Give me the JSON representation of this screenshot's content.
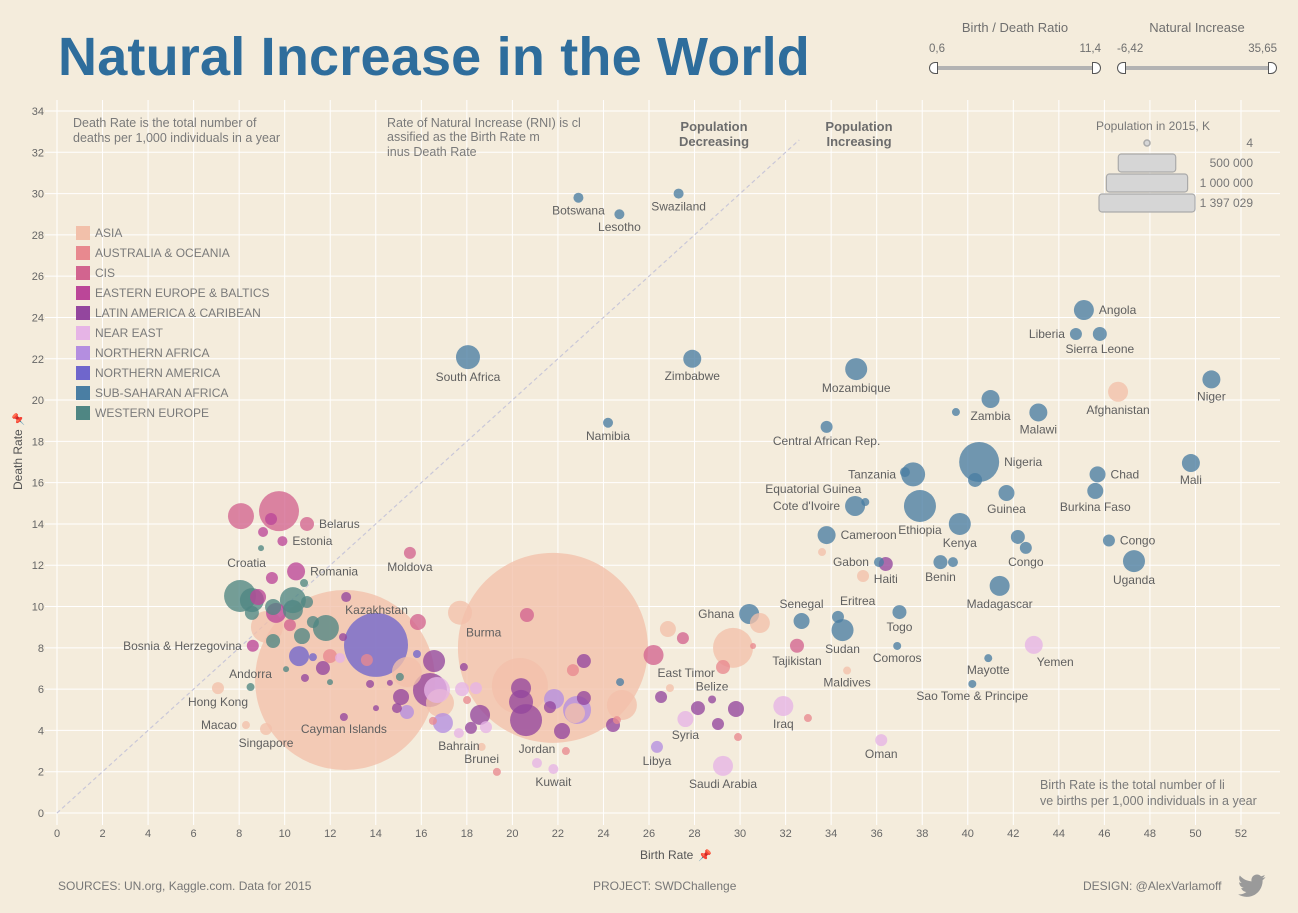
{
  "title": "Natural Increase in the World",
  "filters": [
    {
      "label": "Birth / Death Ratio",
      "min": "0,6",
      "max": "11,4"
    },
    {
      "label": "Natural Increase",
      "min": "-6,42",
      "max": "35,65"
    }
  ],
  "footer": {
    "sources": "SOURCES: UN.org, Kaggle.com. Data for 2015",
    "project": "PROJECT: SWDChallenge",
    "design": "DESIGN: @AlexVarlamoff",
    "icon": "twitter-icon"
  },
  "chart_data": {
    "type": "scatter",
    "xlabel": "Birth Rate",
    "ylabel": "Death Rate",
    "xlim": [
      0,
      52
    ],
    "ylim": [
      0,
      34
    ],
    "xticks": [
      0,
      2,
      4,
      6,
      8,
      10,
      12,
      14,
      16,
      18,
      20,
      22,
      24,
      26,
      28,
      30,
      32,
      34,
      36,
      38,
      40,
      42,
      44,
      46,
      48,
      50,
      52
    ],
    "yticks": [
      0,
      2,
      4,
      6,
      8,
      10,
      12,
      14,
      16,
      18,
      20,
      22,
      24,
      26,
      28,
      30,
      32,
      34
    ],
    "grid": true,
    "reference_line": "birth rate = death rate",
    "annotations": {
      "death_rate_note": "Death Rate is the total number of deaths per 1,000 individuals in a year",
      "rni_note": "Rate of Natural Increase (RNI)  is classified as the Birth Rate minus Death Rate",
      "decreasing": "Population Decreasing",
      "increasing": "Population Increasing",
      "birth_rate_note": "Birth Rate is the total number of live births per 1,000 individuals in a year"
    },
    "size_legend": {
      "title": "Population in 2015, K",
      "entries": [
        {
          "label": "4",
          "value": 4
        },
        {
          "label": "500 000",
          "value": 500000
        },
        {
          "label": "1 000 000",
          "value": 1000000
        },
        {
          "label": "1 397 029",
          "value": 1397029
        }
      ]
    },
    "legend_position": "left",
    "regions": [
      {
        "name": "ASIA",
        "color": "#f2c0aa"
      },
      {
        "name": "AUSTRALIA & OCEANIA",
        "color": "#e8898f"
      },
      {
        "name": "CIS",
        "color": "#d2648f"
      },
      {
        "name": "EASTERN EUROPE & BALTICS",
        "color": "#bb4698"
      },
      {
        "name": "LATIN AMERICA & CARIBEAN",
        "color": "#93469e"
      },
      {
        "name": "NEAR EAST",
        "color": "#e6b4e6"
      },
      {
        "name": "NORTHERN AFRICA",
        "color": "#b48ee0"
      },
      {
        "name": "NORTHERN AMERICA",
        "color": "#6f66cc"
      },
      {
        "name": "SUB-SAHARAN AFRICA",
        "color": "#4a7ea3"
      },
      {
        "name": "WESTERN EUROPE",
        "color": "#4f8683"
      }
    ],
    "point_fields": [
      "country",
      "birth_rate",
      "death_rate",
      "region_index",
      "population_k",
      "label_side"
    ],
    "points": [
      [
        "Botswana",
        22.9,
        29.8,
        8,
        3870,
        "below"
      ],
      [
        "Swaziland",
        27.3,
        30.0,
        8,
        3870,
        "below"
      ],
      [
        "Lesotho",
        24.7,
        29.0,
        8,
        3870,
        "below"
      ],
      [
        "South Africa",
        18.05,
        22.08,
        8,
        22290,
        "below"
      ],
      [
        "Zimbabwe",
        27.9,
        22.0,
        8,
        12540,
        "below"
      ],
      [
        "Namibia",
        24.2,
        18.9,
        8,
        3870,
        "below"
      ],
      [
        "Mozambique",
        35.1,
        21.5,
        8,
        18730,
        "below"
      ],
      [
        "Central African Rep.",
        33.8,
        18.7,
        8,
        5570,
        "below"
      ],
      [
        "Angola",
        45.1,
        24.36,
        8,
        15480,
        "right"
      ],
      [
        "Liberia",
        44.75,
        23.2,
        8,
        5570,
        "left"
      ],
      [
        "Sierra Leone",
        45.8,
        23.2,
        8,
        7580,
        "below"
      ],
      [
        "Afghanistan",
        46.6,
        20.4,
        0,
        15480,
        "below"
      ],
      [
        "Niger",
        50.7,
        21.0,
        8,
        12540,
        "below"
      ],
      [
        "Zambia",
        41.0,
        20.05,
        8,
        12540,
        "below"
      ],
      [
        "Malawi",
        43.1,
        19.4,
        8,
        12540,
        "below"
      ],
      [
        "Nigeria",
        40.5,
        17.0,
        8,
        61910,
        "right"
      ],
      [
        "Tanzania",
        37.6,
        16.4,
        8,
        22290,
        "left"
      ],
      [
        "Chad",
        45.7,
        16.4,
        8,
        9910,
        "right"
      ],
      [
        "Mali",
        49.8,
        16.95,
        8,
        12540,
        "below"
      ],
      [
        "Equatorial Guinea",
        35.5,
        15.06,
        8,
        2480,
        "above-left"
      ],
      [
        "Cote d'Ivoire",
        35.05,
        14.87,
        8,
        15480,
        "left"
      ],
      [
        "Ethiopia",
        37.9,
        14.87,
        8,
        39630,
        "below"
      ],
      [
        "Guinea",
        41.7,
        15.5,
        8,
        9910,
        "below"
      ],
      [
        "Burkina Faso",
        45.6,
        15.6,
        8,
        9910,
        "below"
      ],
      [
        "Kenya",
        39.65,
        14.0,
        8,
        18730,
        "below"
      ],
      [
        "Cameroon",
        33.8,
        13.46,
        8,
        12540,
        "right"
      ],
      [
        "Congo",
        46.2,
        13.2,
        8,
        5570,
        "right"
      ],
      [
        "Congo",
        42.55,
        12.84,
        8,
        5570,
        "below"
      ],
      [
        "Gabon",
        36.1,
        12.15,
        8,
        3870,
        "left"
      ],
      [
        "Haiti",
        36.4,
        12.06,
        4,
        7580,
        "below"
      ],
      [
        "Benin",
        38.8,
        12.15,
        8,
        7580,
        "below"
      ],
      [
        "Madagascar",
        41.4,
        11.0,
        8,
        15480,
        "below"
      ],
      [
        "Uganda",
        47.3,
        12.2,
        8,
        18730,
        "below"
      ],
      [
        "Ghana",
        30.4,
        9.64,
        8,
        15480,
        "left"
      ],
      [
        "Senegal",
        32.7,
        9.3,
        8,
        9910,
        "above"
      ],
      [
        "Eritrea",
        34.3,
        9.5,
        8,
        5570,
        "above-right"
      ],
      [
        "Togo",
        37.0,
        9.73,
        8,
        7580,
        "below"
      ],
      [
        "Sudan",
        34.5,
        8.86,
        8,
        18730,
        "below"
      ],
      [
        "Comoros",
        36.9,
        8.09,
        8,
        2480,
        "below"
      ],
      [
        "Mayotte",
        40.9,
        7.5,
        8,
        2480,
        "below"
      ],
      [
        "Sao Tome & Principe",
        40.2,
        6.25,
        8,
        2480,
        "below"
      ],
      [
        "Yemen",
        42.9,
        8.14,
        5,
        12540,
        "below-right"
      ],
      [
        "Tajikistan",
        32.5,
        8.1,
        2,
        7580,
        "below"
      ],
      [
        "Maldives",
        34.7,
        6.9,
        0,
        2480,
        "below"
      ],
      [
        "Belize",
        28.77,
        5.5,
        4,
        2480,
        "above"
      ],
      [
        "East Timor",
        26.2,
        7.65,
        2,
        15480,
        "below-right"
      ],
      [
        "Iraq",
        31.9,
        5.18,
        5,
        15480,
        "below"
      ],
      [
        "Syria",
        27.6,
        4.55,
        5,
        9910,
        "below"
      ],
      [
        "Libya",
        26.35,
        3.2,
        6,
        5570,
        "below"
      ],
      [
        "Saudi Arabia",
        29.25,
        2.28,
        5,
        15480,
        "below"
      ],
      [
        "Oman",
        36.2,
        3.53,
        5,
        5570,
        "below"
      ],
      [
        "Kuwait",
        21.8,
        2.13,
        5,
        3870,
        "below"
      ],
      [
        "Jordan",
        21.08,
        2.42,
        5,
        3870,
        "above"
      ],
      [
        "Brunei",
        18.65,
        3.2,
        0,
        2480,
        "below"
      ],
      [
        "Bahrain",
        17.65,
        3.87,
        5,
        3870,
        "below"
      ],
      [
        "Burma",
        17.7,
        9.7,
        0,
        22290,
        "below-right"
      ],
      [
        "Moldova",
        15.5,
        12.6,
        2,
        5570,
        "below"
      ],
      [
        "Kazakhstan",
        12.7,
        10.46,
        4,
        3870,
        "below-right"
      ],
      [
        "Belarus",
        10.98,
        14.0,
        2,
        7580,
        "right"
      ],
      [
        "Estonia",
        9.9,
        13.17,
        3,
        3870,
        "right"
      ],
      [
        "Croatia",
        9.44,
        11.38,
        3,
        5570,
        "above-left"
      ],
      [
        "Romania",
        10.5,
        11.7,
        3,
        12540,
        "right"
      ],
      [
        "Bosnia & Herzegovina",
        8.6,
        8.1,
        3,
        5570,
        "left"
      ],
      [
        "Andorra",
        8.5,
        6.1,
        9,
        2480,
        "above"
      ],
      [
        "Hong Kong",
        7.07,
        6.05,
        0,
        5570,
        "below"
      ],
      [
        "Macao",
        8.3,
        4.26,
        0,
        2480,
        "left"
      ],
      [
        "Singapore",
        9.18,
        4.07,
        0,
        5570,
        "below"
      ],
      [
        "Cayman Islands",
        12.6,
        4.65,
        4,
        2480,
        "below"
      ],
      [
        "",
        12.65,
        6.44,
        0,
        1253850,
        ""
      ],
      [
        "",
        21.78,
        8.0,
        0,
        1397029,
        ""
      ],
      [
        "",
        14.01,
        8.14,
        7,
        158520,
        ""
      ],
      [
        "",
        20.33,
        6.15,
        0,
        121370,
        ""
      ],
      [
        "",
        29.69,
        8.0,
        0,
        61910,
        ""
      ],
      [
        "",
        24.81,
        5.23,
        0,
        34830,
        ""
      ],
      [
        "",
        30.87,
        9.2,
        0,
        15480,
        ""
      ],
      [
        "",
        9.75,
        14.62,
        2,
        61910,
        ""
      ],
      [
        "",
        8.08,
        14.38,
        2,
        26160,
        ""
      ],
      [
        "",
        8.04,
        10.51,
        9,
        39630,
        ""
      ],
      [
        "",
        8.56,
        10.31,
        9,
        22290,
        ""
      ],
      [
        "",
        8.83,
        10.46,
        3,
        9910,
        ""
      ],
      [
        "",
        8.56,
        9.69,
        9,
        7580,
        ""
      ],
      [
        "",
        9.22,
        9.01,
        0,
        39630,
        ""
      ],
      [
        "",
        9.49,
        9.98,
        9,
        9910,
        ""
      ],
      [
        "",
        9.62,
        9.69,
        3,
        15480,
        ""
      ],
      [
        "",
        10.36,
        10.31,
        9,
        26160,
        ""
      ],
      [
        "",
        10.98,
        10.22,
        9,
        5570,
        ""
      ],
      [
        "",
        10.36,
        9.83,
        9,
        15480,
        ""
      ],
      [
        "",
        10.23,
        9.1,
        2,
        5570,
        ""
      ],
      [
        "",
        11.24,
        9.25,
        9,
        5570,
        ""
      ],
      [
        "",
        11.81,
        8.96,
        9,
        26160,
        ""
      ],
      [
        "",
        10.76,
        8.57,
        9,
        9910,
        ""
      ],
      [
        "",
        9.49,
        8.33,
        9,
        7580,
        ""
      ],
      [
        "",
        10.63,
        7.6,
        7,
        15480,
        ""
      ],
      [
        "",
        11.24,
        7.55,
        7,
        2480,
        ""
      ],
      [
        "",
        10.06,
        6.97,
        9,
        1390,
        ""
      ],
      [
        "",
        11.99,
        6.34,
        9,
        1390,
        ""
      ],
      [
        "",
        11.68,
        7.02,
        4,
        7580,
        ""
      ],
      [
        "",
        11.99,
        7.6,
        1,
        7580,
        ""
      ],
      [
        "",
        10.89,
        6.54,
        4,
        2480,
        ""
      ],
      [
        "",
        12.43,
        7.51,
        5,
        3870,
        ""
      ],
      [
        "",
        12.56,
        8.52,
        4,
        2480,
        ""
      ],
      [
        "",
        13.61,
        7.41,
        1,
        5570,
        ""
      ],
      [
        "",
        15.37,
        6.83,
        0,
        34830,
        ""
      ],
      [
        "",
        15.81,
        7.7,
        7,
        2480,
        ""
      ],
      [
        "",
        16.56,
        7.36,
        4,
        18730,
        ""
      ],
      [
        "",
        16.38,
        5.96,
        4,
        44740,
        ""
      ],
      [
        "",
        16.69,
        5.96,
        5,
        26160,
        ""
      ],
      [
        "",
        16.82,
        5.33,
        0,
        30340,
        ""
      ],
      [
        "",
        15.11,
        5.62,
        4,
        9910,
        ""
      ],
      [
        "",
        15.37,
        4.89,
        6,
        7580,
        ""
      ],
      [
        "",
        16.95,
        4.36,
        6,
        15480,
        ""
      ],
      [
        "",
        17.79,
        6.0,
        5,
        7580,
        ""
      ],
      [
        "",
        17.87,
        7.07,
        4,
        2480,
        ""
      ],
      [
        "",
        15.85,
        9.25,
        2,
        9910,
        ""
      ],
      [
        "",
        15.06,
        6.59,
        9,
        2480,
        ""
      ],
      [
        "",
        14.62,
        6.3,
        4,
        1390,
        ""
      ],
      [
        "",
        13.75,
        6.25,
        4,
        2480,
        ""
      ],
      [
        "",
        14.01,
        5.08,
        4,
        1390,
        ""
      ],
      [
        "",
        14.93,
        5.08,
        4,
        3870,
        ""
      ],
      [
        "",
        18.58,
        4.75,
        4,
        15480,
        ""
      ],
      [
        "",
        18.18,
        4.12,
        4,
        5570,
        ""
      ],
      [
        "",
        20.38,
        6.05,
        4,
        15480,
        ""
      ],
      [
        "",
        20.38,
        5.38,
        4,
        22290,
        ""
      ],
      [
        "",
        20.6,
        4.5,
        4,
        39630,
        ""
      ],
      [
        "",
        22.18,
        3.97,
        4,
        9910,
        ""
      ],
      [
        "",
        23.14,
        7.36,
        4,
        7580,
        ""
      ],
      [
        "",
        22.66,
        6.92,
        1,
        5570,
        ""
      ],
      [
        "",
        21.83,
        5.52,
        6,
        15480,
        ""
      ],
      [
        "",
        22.84,
        4.99,
        6,
        30340,
        ""
      ],
      [
        "",
        22.75,
        4.84,
        0,
        15480,
        ""
      ],
      [
        "",
        23.14,
        5.57,
        4,
        7580,
        ""
      ],
      [
        "",
        21.65,
        5.13,
        4,
        5570,
        ""
      ],
      [
        "",
        20.64,
        9.59,
        2,
        7580,
        ""
      ],
      [
        "",
        18.4,
        6.05,
        5,
        5570,
        ""
      ],
      [
        "",
        18.01,
        5.47,
        1,
        2480,
        ""
      ],
      [
        "",
        18.84,
        4.16,
        5,
        5570,
        ""
      ],
      [
        "",
        24.42,
        4.26,
        4,
        7580,
        ""
      ],
      [
        "",
        24.59,
        4.5,
        1,
        2480,
        ""
      ],
      [
        "",
        24.73,
        6.34,
        8,
        2480,
        ""
      ],
      [
        "",
        26.53,
        5.62,
        4,
        5570,
        ""
      ],
      [
        "",
        26.83,
        8.91,
        0,
        9910,
        ""
      ],
      [
        "",
        27.49,
        8.47,
        2,
        5570,
        ""
      ],
      [
        "",
        26.92,
        6.05,
        0,
        2480,
        ""
      ],
      [
        "",
        28.15,
        5.08,
        4,
        7580,
        ""
      ],
      [
        "",
        29.03,
        4.31,
        4,
        5570,
        ""
      ],
      [
        "",
        29.82,
        5.04,
        4,
        9910,
        ""
      ],
      [
        "",
        29.25,
        7.07,
        1,
        7580,
        ""
      ],
      [
        "",
        30.57,
        8.09,
        1,
        1390,
        ""
      ],
      [
        "",
        29.91,
        3.68,
        1,
        2480,
        ""
      ],
      [
        "",
        22.35,
        3.0,
        1,
        2480,
        ""
      ],
      [
        "",
        19.32,
        1.99,
        1,
        2480,
        ""
      ],
      [
        "",
        16.51,
        4.46,
        1,
        2480,
        ""
      ],
      [
        "",
        32.98,
        4.6,
        1,
        2480,
        ""
      ],
      [
        "",
        33.6,
        12.64,
        0,
        2480,
        ""
      ],
      [
        "",
        39.48,
        19.42,
        8,
        2480,
        ""
      ],
      [
        "",
        37.24,
        16.51,
        8,
        3870,
        ""
      ],
      [
        "",
        40.32,
        16.13,
        8,
        7580,
        ""
      ],
      [
        "",
        42.2,
        13.37,
        8,
        7580,
        ""
      ],
      [
        "",
        39.35,
        12.15,
        8,
        3870,
        ""
      ],
      [
        "",
        35.4,
        11.48,
        0,
        5570,
        ""
      ],
      [
        "",
        10.85,
        11.14,
        9,
        2480,
        ""
      ],
      [
        "",
        9.4,
        14.24,
        3,
        5570,
        ""
      ],
      [
        "",
        9.05,
        13.61,
        3,
        3870,
        ""
      ],
      [
        "",
        8.96,
        12.83,
        9,
        1390,
        ""
      ]
    ]
  }
}
